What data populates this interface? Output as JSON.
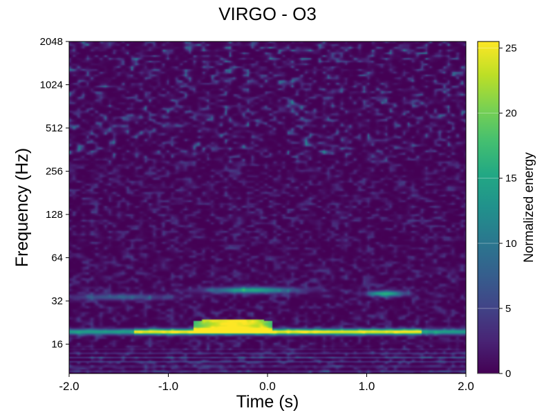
{
  "chart_data": {
    "type": "heatmap",
    "title": "VIRGO - O3",
    "xlabel": "Time (s)",
    "ylabel": "Frequency (Hz)",
    "x_range": [
      -2.0,
      2.0
    ],
    "x_ticks": [
      "-2.0",
      "-1.0",
      "0.0",
      "1.0",
      "2.0"
    ],
    "x_tick_values": [
      -2.0,
      -1.0,
      0.0,
      1.0,
      2.0
    ],
    "y_scale": "log2",
    "y_range": [
      10,
      2048
    ],
    "y_ticks": [
      "16",
      "32",
      "64",
      "128",
      "256",
      "512",
      "1024",
      "2048"
    ],
    "y_tick_values": [
      16,
      32,
      64,
      128,
      256,
      512,
      1024,
      2048
    ],
    "colormap": "viridis",
    "colorbar_label": "Normalized energy",
    "colorbar_range": [
      0,
      25.5
    ],
    "colorbar_ticks": [
      "0",
      "5",
      "10",
      "15",
      "20",
      "25"
    ],
    "colorbar_tick_values": [
      0,
      5,
      10,
      15,
      20,
      25
    ],
    "features": [
      {
        "name": "main track",
        "t_start": -2.0,
        "t_end": 2.0,
        "freq": 19.5,
        "peak_energy": 25
      },
      {
        "name": "bright burst",
        "t_start": -0.7,
        "t_end": 0.0,
        "freq_low": 19,
        "freq_high": 24,
        "peak_energy": 25.5
      },
      {
        "name": "secondary track",
        "t_start": -0.4,
        "t_end": 0.3,
        "freq": 38,
        "peak_energy": 16
      },
      {
        "name": "secondary track",
        "t_start": 1.0,
        "t_end": 1.4,
        "freq": 36,
        "peak_energy": 17
      }
    ]
  }
}
